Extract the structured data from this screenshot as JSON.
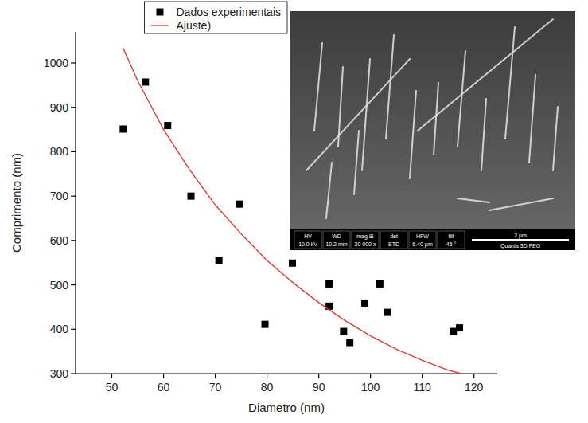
{
  "chart_data": {
    "type": "scatter",
    "x_label": "Diametro (nm)",
    "y_label": "Comprimento (nm)",
    "xlim": [
      43,
      124.5
    ],
    "ylim": [
      300,
      1070
    ],
    "xticks": [
      50,
      60,
      70,
      80,
      90,
      100,
      110,
      120
    ],
    "yticks": [
      300,
      400,
      500,
      600,
      700,
      800,
      900,
      1000
    ],
    "grid": false,
    "legend": "top",
    "series": [
      {
        "name": "Dados experimentais",
        "type": "scatter",
        "marker": "square",
        "color": "#000000",
        "x": [
          52.2,
          56.5,
          60.8,
          65.3,
          70.7,
          74.7,
          79.6,
          84.9,
          92.0,
          92.0,
          94.8,
          96.0,
          98.9,
          101.8,
          103.3,
          116.0,
          117.2
        ],
        "values": [
          851,
          957,
          859,
          700,
          554,
          682,
          411,
          549,
          502,
          452,
          395,
          370,
          459,
          502,
          438,
          395,
          403
        ]
      },
      {
        "name": "Ajuste)",
        "type": "line",
        "line_style": "solid",
        "color": "#e0362c",
        "x": [
          52.2,
          55,
          60,
          65,
          70,
          75,
          80,
          85,
          90,
          95,
          100,
          105,
          110,
          115,
          117.5
        ],
        "values": [
          1033,
          960,
          850,
          760,
          680,
          615,
          555,
          505,
          460,
          420,
          385,
          355,
          330,
          308,
          300
        ]
      }
    ],
    "annotations": {
      "info": [
        {
          "label": "HV",
          "value": "10.0 kV"
        },
        {
          "label": "WD",
          "value": "10.2 mm"
        },
        {
          "label": "mag ⊞",
          "value": "20 000 x"
        },
        {
          "label": "det",
          "value": "ETD"
        },
        {
          "label": "HFW",
          "value": "6.40 µm"
        },
        {
          "label": "tilt",
          "value": "45 °"
        }
      ],
      "scale_bar": "2 µm",
      "instrument": "Quanta 3D FEG"
    }
  }
}
